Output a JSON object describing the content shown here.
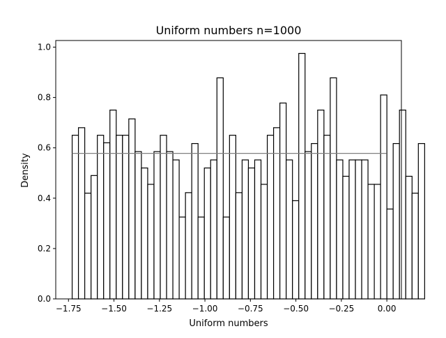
{
  "chart_data": {
    "type": "bar",
    "title": "Uniform numbers n=1000",
    "xlabel": "Uniform numbers",
    "ylabel": "Density",
    "xlim": [
      -1.82,
      0.08
    ],
    "ylim": [
      0.0,
      1.0263
    ],
    "xticks": [
      -1.75,
      -1.5,
      -1.25,
      -1.0,
      -0.75,
      -0.5,
      -0.25,
      0.0
    ],
    "xtick_labels": [
      "−1.75",
      "−1.50",
      "−1.25",
      "−1.00",
      "−0.75",
      "−0.50",
      "−0.25",
      "0.00"
    ],
    "yticks": [
      0.0,
      0.2,
      0.4,
      0.6,
      0.8,
      1.0
    ],
    "ytick_labels": [
      "0.0",
      "0.2",
      "0.4",
      "0.6",
      "0.8",
      "1.0"
    ],
    "bins": {
      "start": -1.7298,
      "width": 0.0346,
      "values": [
        0.65,
        0.68,
        0.42,
        0.49,
        0.65,
        0.62,
        0.75,
        0.65,
        0.65,
        0.715,
        0.585,
        0.52,
        0.455,
        0.585,
        0.65,
        0.585,
        0.552,
        0.325,
        0.422,
        0.617,
        0.325,
        0.52,
        0.552,
        0.878,
        0.325,
        0.65,
        0.422,
        0.552,
        0.52,
        0.552,
        0.455,
        0.65,
        0.68,
        0.778,
        0.552,
        0.39,
        0.975,
        0.585,
        0.617,
        0.75,
        0.65,
        0.878,
        0.552,
        0.487,
        0.552,
        0.552,
        0.552,
        0.455,
        0.455,
        0.81,
        0.357,
        0.617,
        0.75,
        0.487,
        0.42,
        0.617
      ]
    },
    "reference_line": {
      "y": 0.578,
      "x_start": -1.7298,
      "x_end": -0.0012,
      "color": "#808080"
    },
    "bar_edge_color": "#000000",
    "bar_fill_color": "#ffffff",
    "grid": false,
    "legend": "none"
  }
}
